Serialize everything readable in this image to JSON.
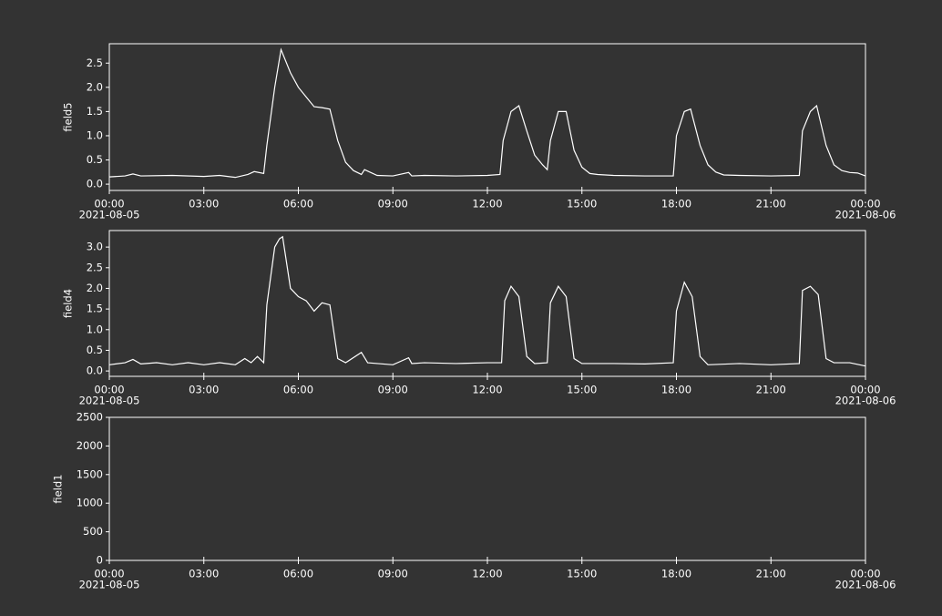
{
  "chart_data": [
    {
      "type": "line",
      "ylabel": "field5",
      "color": "#ffffff",
      "x": [
        0,
        0.5,
        0.75,
        1,
        2,
        3,
        3.5,
        4,
        4.4,
        4.6,
        4.9,
        5.0,
        5.25,
        5.45,
        5.75,
        6.0,
        6.25,
        6.5,
        6.75,
        7.0,
        7.25,
        7.5,
        7.75,
        8.0,
        8.1,
        8.5,
        9.0,
        9.5,
        9.6,
        10,
        11,
        12,
        12.4,
        12.5,
        12.75,
        13.0,
        13.25,
        13.5,
        13.75,
        13.9,
        14.0,
        14.25,
        14.5,
        14.75,
        15.0,
        15.25,
        15.5,
        16,
        17,
        17.9,
        18.0,
        18.25,
        18.45,
        18.75,
        19.0,
        19.25,
        19.5,
        20,
        21,
        21.9,
        22.0,
        22.25,
        22.45,
        22.75,
        23.0,
        23.25,
        23.5,
        23.75,
        24
      ],
      "values": [
        0.15,
        0.17,
        0.21,
        0.17,
        0.18,
        0.16,
        0.18,
        0.14,
        0.2,
        0.26,
        0.22,
        0.8,
        2.0,
        2.78,
        2.3,
        2.0,
        1.8,
        1.6,
        1.58,
        1.55,
        0.9,
        0.45,
        0.28,
        0.2,
        0.3,
        0.18,
        0.17,
        0.24,
        0.17,
        0.18,
        0.17,
        0.18,
        0.2,
        0.9,
        1.5,
        1.62,
        1.1,
        0.6,
        0.4,
        0.3,
        0.9,
        1.5,
        1.5,
        0.7,
        0.35,
        0.22,
        0.2,
        0.18,
        0.17,
        0.17,
        1.0,
        1.5,
        1.55,
        0.8,
        0.4,
        0.25,
        0.19,
        0.18,
        0.17,
        0.18,
        1.1,
        1.5,
        1.62,
        0.8,
        0.4,
        0.28,
        0.24,
        0.23,
        0.17
      ],
      "xlim": [
        0,
        24
      ],
      "xticks": [
        {
          "value": 0,
          "label": "00:00"
        },
        {
          "value": 3,
          "label": "03:00"
        },
        {
          "value": 6,
          "label": "06:00"
        },
        {
          "value": 9,
          "label": "09:00"
        },
        {
          "value": 12,
          "label": "12:00"
        },
        {
          "value": 15,
          "label": "15:00"
        },
        {
          "value": 18,
          "label": "18:00"
        },
        {
          "value": 21,
          "label": "21:00"
        },
        {
          "value": 24,
          "label": "00:00"
        }
      ],
      "x_dates": [
        {
          "value": 0,
          "label": "2021-08-05"
        },
        {
          "value": 24,
          "label": "2021-08-06"
        }
      ],
      "ylim": [
        -0.13,
        2.9
      ],
      "yticks": [
        {
          "value": 0,
          "label": "0.0"
        },
        {
          "value": 0.5,
          "label": "0.5"
        },
        {
          "value": 1,
          "label": "1.0"
        },
        {
          "value": 1.5,
          "label": "1.5"
        },
        {
          "value": 2,
          "label": "2.0"
        },
        {
          "value": 2.5,
          "label": "2.5"
        }
      ]
    },
    {
      "type": "line",
      "ylabel": "field4",
      "color": "#ffffff",
      "x": [
        0,
        0.5,
        0.75,
        1,
        1.5,
        2,
        2.5,
        3,
        3.5,
        4,
        4.3,
        4.5,
        4.7,
        4.9,
        5.0,
        5.25,
        5.4,
        5.5,
        5.75,
        6.0,
        6.25,
        6.5,
        6.75,
        7.0,
        7.25,
        7.5,
        8.0,
        8.2,
        9,
        9.5,
        9.6,
        10,
        11,
        12,
        12.45,
        12.55,
        12.75,
        13.0,
        13.25,
        13.5,
        13.9,
        14.0,
        14.25,
        14.5,
        14.75,
        15.0,
        16,
        17,
        17.9,
        18.0,
        18.25,
        18.5,
        18.75,
        19.0,
        20,
        21,
        21.9,
        22.0,
        22.25,
        22.5,
        22.75,
        23.0,
        23.5,
        24
      ],
      "values": [
        0.15,
        0.2,
        0.28,
        0.17,
        0.2,
        0.15,
        0.2,
        0.15,
        0.2,
        0.15,
        0.3,
        0.2,
        0.35,
        0.2,
        1.6,
        3.0,
        3.2,
        3.25,
        2.0,
        1.8,
        1.7,
        1.45,
        1.65,
        1.6,
        0.3,
        0.2,
        0.45,
        0.2,
        0.15,
        0.32,
        0.18,
        0.2,
        0.18,
        0.2,
        0.2,
        1.7,
        2.05,
        1.8,
        0.35,
        0.18,
        0.2,
        1.65,
        2.05,
        1.8,
        0.3,
        0.18,
        0.18,
        0.17,
        0.2,
        1.45,
        2.15,
        1.8,
        0.35,
        0.15,
        0.18,
        0.15,
        0.18,
        1.95,
        2.05,
        1.85,
        0.3,
        0.2,
        0.2,
        0.12
      ],
      "xlim": [
        0,
        24
      ],
      "xticks": [
        {
          "value": 0,
          "label": "00:00"
        },
        {
          "value": 3,
          "label": "03:00"
        },
        {
          "value": 6,
          "label": "06:00"
        },
        {
          "value": 9,
          "label": "09:00"
        },
        {
          "value": 12,
          "label": "12:00"
        },
        {
          "value": 15,
          "label": "15:00"
        },
        {
          "value": 18,
          "label": "18:00"
        },
        {
          "value": 21,
          "label": "21:00"
        },
        {
          "value": 24,
          "label": "00:00"
        }
      ],
      "x_dates": [
        {
          "value": 0,
          "label": "2021-08-05"
        },
        {
          "value": 24,
          "label": "2021-08-06"
        }
      ],
      "ylim": [
        -0.13,
        3.4
      ],
      "yticks": [
        {
          "value": 0,
          "label": "0.0"
        },
        {
          "value": 0.5,
          "label": "0.5"
        },
        {
          "value": 1,
          "label": "1.0"
        },
        {
          "value": 1.5,
          "label": "1.5"
        },
        {
          "value": 2,
          "label": "2.0"
        },
        {
          "value": 2.5,
          "label": "2.5"
        },
        {
          "value": 3,
          "label": "3.0"
        }
      ]
    },
    {
      "type": "line",
      "ylabel": "field1",
      "color": "#ffffff",
      "x": [],
      "values": [],
      "xlim": [
        0,
        24
      ],
      "xticks": [
        {
          "value": 0,
          "label": "00:00"
        },
        {
          "value": 3,
          "label": "03:00"
        },
        {
          "value": 6,
          "label": "06:00"
        },
        {
          "value": 9,
          "label": "09:00"
        },
        {
          "value": 12,
          "label": "12:00"
        },
        {
          "value": 15,
          "label": "15:00"
        },
        {
          "value": 18,
          "label": "18:00"
        },
        {
          "value": 21,
          "label": "21:00"
        },
        {
          "value": 24,
          "label": "00:00"
        }
      ],
      "x_dates": [
        {
          "value": 0,
          "label": "2021-08-05"
        },
        {
          "value": 24,
          "label": "2021-08-06"
        }
      ],
      "ylim": [
        0,
        2500
      ],
      "yticks": [
        0,
        500,
        1000,
        1500,
        2000,
        2500
      ]
    }
  ]
}
